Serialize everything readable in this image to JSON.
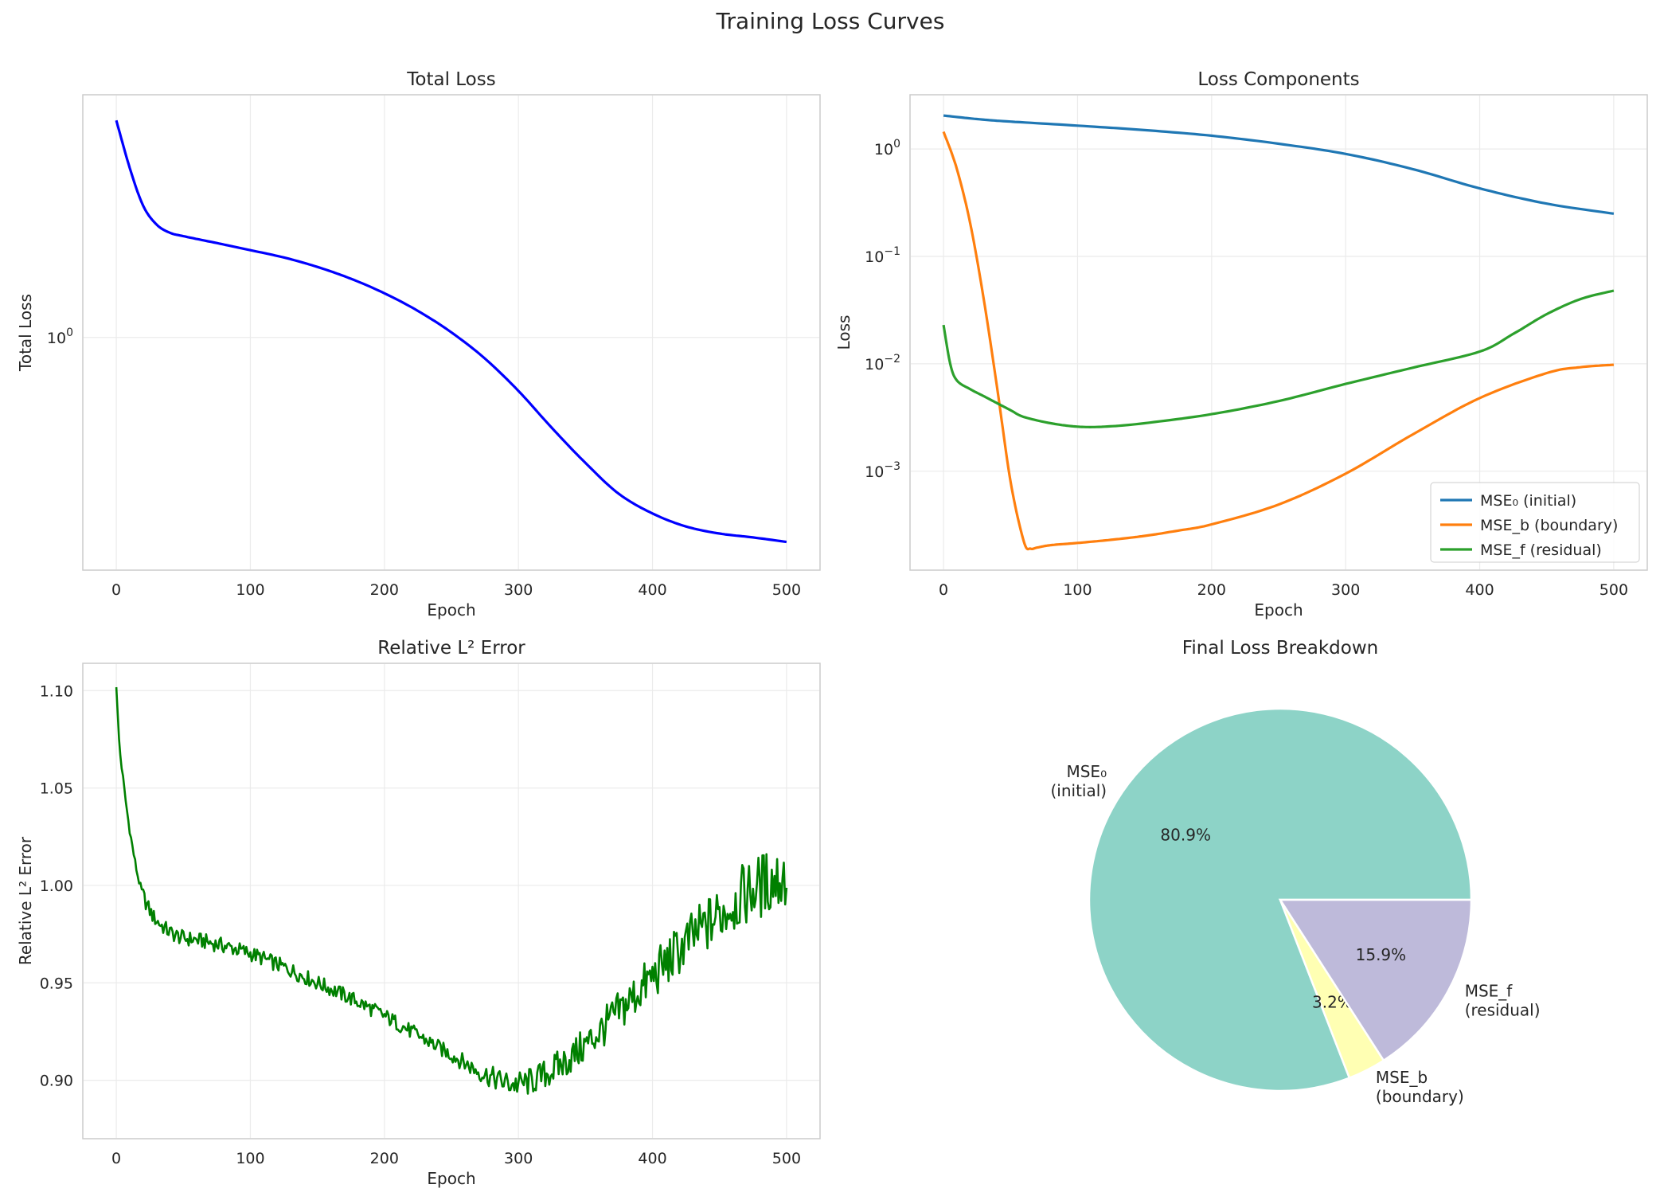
{
  "figure": {
    "suptitle": "Training Loss Curves"
  },
  "chart_data": [
    {
      "type": "line",
      "title": "Total Loss",
      "xlabel": "Epoch",
      "ylabel": "Total Loss",
      "yscale": "log",
      "xlim": [
        -25,
        525
      ],
      "ylim": [
        0.4,
        2.6
      ],
      "xticks": [
        0,
        100,
        200,
        300,
        400,
        500
      ],
      "ytick_labels": [
        "10^0"
      ],
      "grid": true,
      "color": "#0000ff",
      "series": [
        {
          "x": [
            0,
            10,
            20,
            30,
            40,
            50,
            75,
            100,
            125,
            150,
            175,
            200,
            225,
            250,
            275,
            300,
            325,
            350,
            375,
            400,
            425,
            450,
            475,
            500
          ],
          "values": [
            2.35,
            1.95,
            1.68,
            1.56,
            1.51,
            1.49,
            1.45,
            1.41,
            1.37,
            1.32,
            1.26,
            1.19,
            1.11,
            1.02,
            0.92,
            0.81,
            0.7,
            0.61,
            0.54,
            0.5,
            0.475,
            0.462,
            0.455,
            0.447
          ]
        }
      ]
    },
    {
      "type": "line",
      "title": "Loss Components",
      "xlabel": "Epoch",
      "ylabel": "Loss",
      "yscale": "log",
      "xlim": [
        -25,
        525
      ],
      "ylim": [
        0.00012,
        3.2
      ],
      "xticks": [
        0,
        100,
        200,
        300,
        400,
        500
      ],
      "ytick_labels": [
        "10^0",
        "10^-1",
        "10^-2",
        "10^-3"
      ],
      "grid": true,
      "legend": "lower-right",
      "series": [
        {
          "name": "MSE₀ (initial)",
          "color": "#1f77b4",
          "x": [
            0,
            25,
            50,
            100,
            150,
            200,
            250,
            300,
            350,
            400,
            450,
            500
          ],
          "values": [
            2.05,
            1.9,
            1.8,
            1.65,
            1.5,
            1.33,
            1.12,
            0.9,
            0.65,
            0.43,
            0.31,
            0.25
          ]
        },
        {
          "name": "MSE_b (boundary)",
          "color": "#ff7f0e",
          "x": [
            0,
            10,
            20,
            30,
            40,
            50,
            60,
            65,
            70,
            80,
            100,
            125,
            150,
            175,
            200,
            250,
            300,
            350,
            400,
            450,
            475,
            500
          ],
          "values": [
            1.45,
            0.65,
            0.2,
            0.04,
            0.006,
            0.0008,
            0.00022,
            0.00019,
            0.000195,
            0.000205,
            0.000215,
            0.00023,
            0.00025,
            0.00028,
            0.00032,
            0.00049,
            0.00095,
            0.0022,
            0.0048,
            0.0082,
            0.0093,
            0.0098
          ]
        },
        {
          "name": "MSE_f (residual)",
          "color": "#2ca02c",
          "x": [
            0,
            5,
            10,
            20,
            30,
            40,
            50,
            60,
            80,
            100,
            120,
            150,
            200,
            250,
            300,
            350,
            400,
            425,
            450,
            475,
            500
          ],
          "values": [
            0.023,
            0.01,
            0.007,
            0.0058,
            0.005,
            0.0043,
            0.0037,
            0.0032,
            0.0028,
            0.0026,
            0.0026,
            0.0028,
            0.0034,
            0.0045,
            0.0065,
            0.0092,
            0.013,
            0.019,
            0.029,
            0.04,
            0.048
          ]
        }
      ]
    },
    {
      "type": "line",
      "title": "Relative L² Error",
      "xlabel": "Epoch",
      "ylabel": "Relative L² Error",
      "xlim": [
        -25,
        525
      ],
      "ylim": [
        0.87,
        1.114
      ],
      "xticks": [
        0,
        100,
        200,
        300,
        400,
        500
      ],
      "yticks": [
        "0.90",
        "0.95",
        "1.00",
        "1.05",
        "1.10"
      ],
      "grid": true,
      "color": "#008000",
      "series": [
        {
          "x": [
            0,
            2,
            5,
            8,
            12,
            16,
            20,
            25,
            30,
            40,
            50,
            60,
            80,
            100,
            125,
            150,
            175,
            200,
            225,
            250,
            275,
            300,
            325,
            350,
            375,
            400,
            425,
            450,
            475,
            500
          ],
          "values": [
            1.103,
            1.075,
            1.055,
            1.038,
            1.02,
            1.005,
            0.995,
            0.987,
            0.982,
            0.976,
            0.973,
            0.972,
            0.969,
            0.965,
            0.958,
            0.95,
            0.942,
            0.933,
            0.923,
            0.913,
            0.903,
            0.898,
            0.905,
            0.918,
            0.935,
            0.953,
            0.97,
            0.985,
            0.998,
            1.005
          ]
        }
      ]
    },
    {
      "type": "pie",
      "title": "Final Loss Breakdown",
      "start_angle_deg": 0,
      "slices": [
        {
          "label": "MSE₀\n(initial)",
          "value": 80.9,
          "pct": "80.9%",
          "color": "#8dd3c7"
        },
        {
          "label": "MSE_b\n(boundary)",
          "value": 3.2,
          "pct": "3.2%",
          "color": "#ffffb3"
        },
        {
          "label": "MSE_f\n(residual)",
          "value": 15.9,
          "pct": "15.9%",
          "color": "#bebada"
        }
      ]
    }
  ]
}
